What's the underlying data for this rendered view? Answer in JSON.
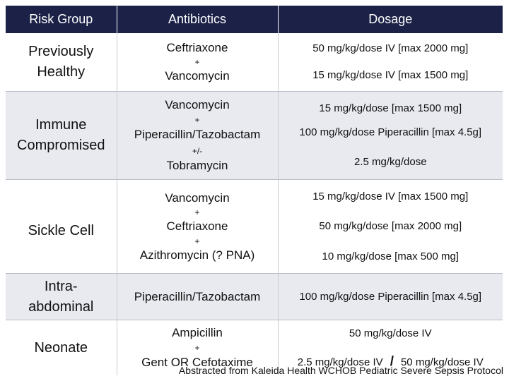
{
  "table": {
    "headers": [
      "Risk Group",
      "Antibiotics",
      "Dosage"
    ],
    "rows": [
      {
        "group": [
          "Previously",
          "Healthy"
        ],
        "drugs": [
          "Ceftriaxone",
          "+",
          "Vancomycin"
        ],
        "doses": [
          "50 mg/kg/dose IV [max 2000 mg]",
          "15 mg/kg/dose IV [max 1500 mg]"
        ]
      },
      {
        "group": [
          "Immune",
          "Compromised"
        ],
        "drugs": [
          "Vancomycin",
          "+",
          "Piperacillin/Tazobactam",
          "+/-",
          "Tobramycin"
        ],
        "doses": [
          "15 mg/kg/dose [max 1500 mg]",
          "100 mg/kg/dose Piperacillin [max 4.5g]",
          "2.5 mg/kg/dose"
        ]
      },
      {
        "group": [
          "Sickle Cell"
        ],
        "drugs": [
          "Vancomycin",
          "+",
          "Ceftriaxone",
          "+",
          "Azithromycin (? PNA)"
        ],
        "doses": [
          "15 mg/kg/dose IV [max 1500 mg]",
          "50 mg/kg/dose [max 2000 mg]",
          "10 mg/kg/dose [max 500 mg]"
        ]
      },
      {
        "group": [
          "Intra-",
          "abdominal"
        ],
        "drugs": [
          "Piperacillin/Tazobactam"
        ],
        "doses": [
          "100 mg/kg/dose Piperacillin [max 4.5g]"
        ]
      },
      {
        "group": [
          "Neonate"
        ],
        "drugs": [
          "Ampicillin",
          "+",
          "Gent OR Cefotaxime"
        ],
        "doses": [
          "50 mg/kg/dose IV",
          "2.5 mg/kg/dose IV",
          "/",
          "50 mg/kg/dose IV"
        ]
      }
    ]
  },
  "footer": "Abstracted from Kaleida Health WCHOB Pediatric Severe Sepsis Protocol"
}
